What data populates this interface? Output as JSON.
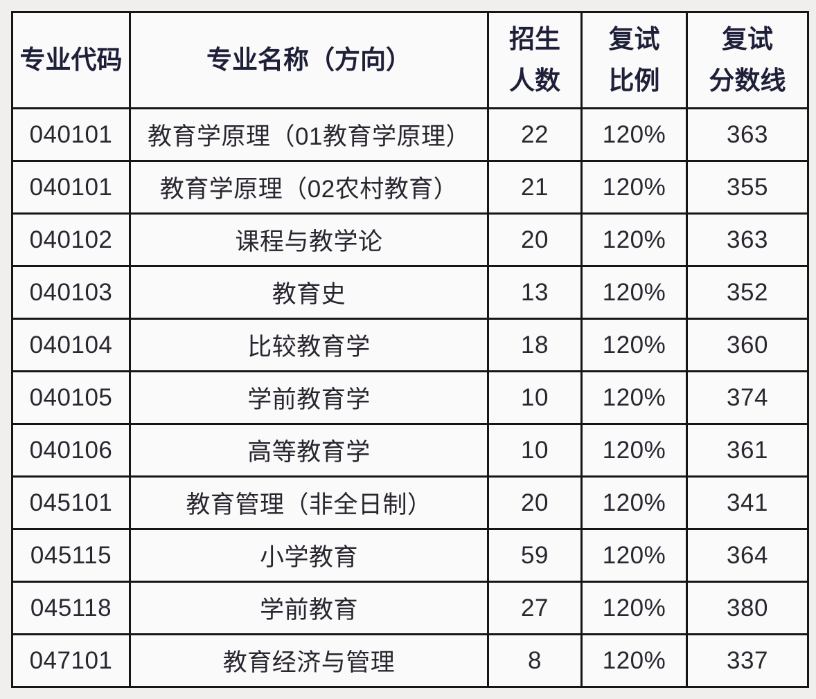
{
  "chart_data": {
    "type": "table",
    "columns": [
      "专业代码",
      "专业名称（方向）",
      "招生\n人数",
      "复试\n比例",
      "复试\n分数线"
    ],
    "rows": [
      [
        "040101",
        "教育学原理（01教育学原理）",
        "22",
        "120%",
        "363"
      ],
      [
        "040101",
        "教育学原理（02农村教育）",
        "21",
        "120%",
        "355"
      ],
      [
        "040102",
        "课程与教学论",
        "20",
        "120%",
        "363"
      ],
      [
        "040103",
        "教育史",
        "13",
        "120%",
        "352"
      ],
      [
        "040104",
        "比较教育学",
        "18",
        "120%",
        "360"
      ],
      [
        "040105",
        "学前教育学",
        "10",
        "120%",
        "374"
      ],
      [
        "040106",
        "高等教育学",
        "10",
        "120%",
        "361"
      ],
      [
        "045101",
        "教育管理（非全日制）",
        "20",
        "120%",
        "341"
      ],
      [
        "045115",
        "小学教育",
        "59",
        "120%",
        "364"
      ],
      [
        "045118",
        "学前教育",
        "27",
        "120%",
        "380"
      ],
      [
        "047101",
        "教育经济与管理",
        "8",
        "120%",
        "337"
      ]
    ],
    "layout": {
      "grid": "on",
      "header_rows": 1
    }
  },
  "colors": {
    "page_background": "#f0efee",
    "cell_background": "#fbfafa",
    "border": "#161616",
    "header_text": "#1e1f38",
    "body_text": "#2a2630"
  }
}
